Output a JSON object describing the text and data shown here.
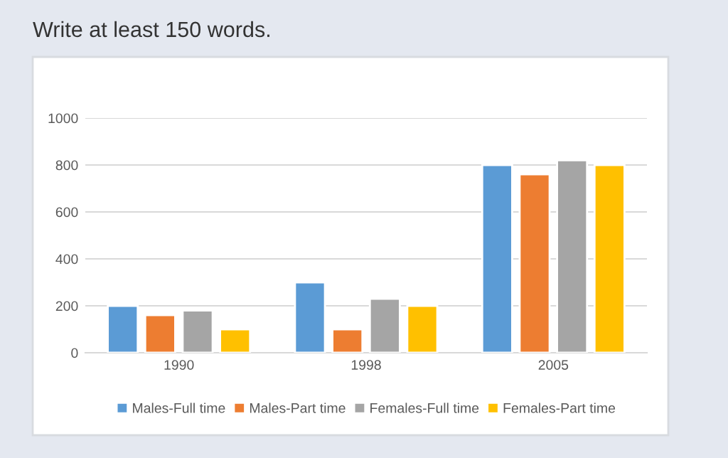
{
  "chart_data": {
    "type": "bar",
    "annotations": [
      "Write at least 150 words."
    ],
    "categories": [
      "1990",
      "1998",
      "2005"
    ],
    "series": [
      {
        "name": "Males-Full time",
        "color": "#5b9bd5",
        "values": [
          200,
          300,
          800
        ]
      },
      {
        "name": "Males-Part time",
        "color": "#ed7d31",
        "values": [
          160,
          100,
          760
        ]
      },
      {
        "name": "Females-Full time",
        "color": "#a5a5a5",
        "values": [
          180,
          230,
          820
        ]
      },
      {
        "name": "Females-Part time",
        "color": "#ffc000",
        "values": [
          100,
          200,
          800
        ]
      }
    ],
    "ylim": [
      0,
      1000
    ],
    "yticks": [
      0,
      200,
      400,
      600,
      800,
      1000
    ],
    "grid": "y",
    "legend": "bottom"
  }
}
